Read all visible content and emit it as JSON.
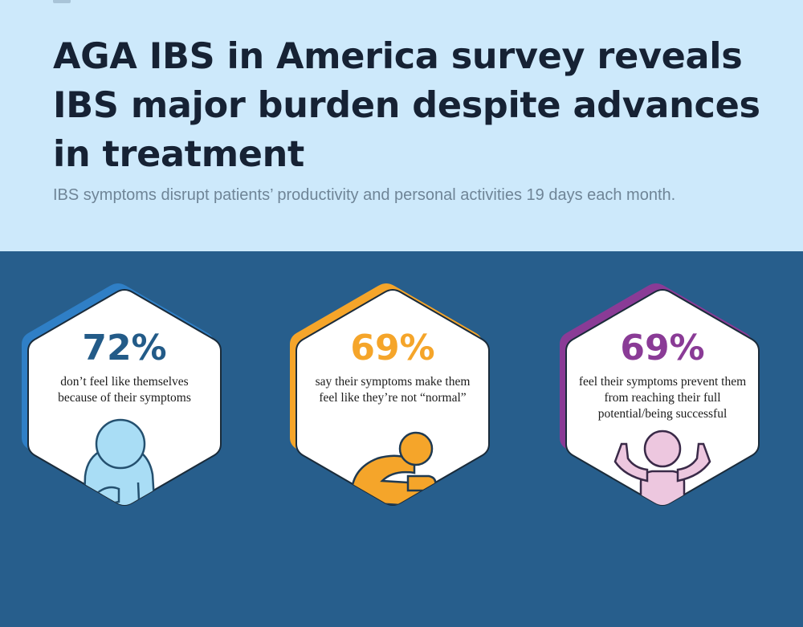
{
  "header": {
    "title": "AGA IBS in America survey reveals IBS major burden despite advances in treatment",
    "subtitle": "IBS symptoms disrupt patients’ productivity and personal activities 19 days each month."
  },
  "stats": [
    {
      "percent": "72%",
      "text": "don’t feel like themselves because of their symptoms",
      "color": "#2f7fc6",
      "figure": "person-hand-on-stomach-icon"
    },
    {
      "percent": "69%",
      "text": "say their symptoms make them feel like they’re not “normal”",
      "color": "#f5a52a",
      "figure": "person-hunched-over-icon"
    },
    {
      "percent": "69%",
      "text": "feel their symptoms prevent them from reaching their full potential/being successful",
      "color": "#8a3b96",
      "figure": "person-arms-raised-icon"
    }
  ]
}
